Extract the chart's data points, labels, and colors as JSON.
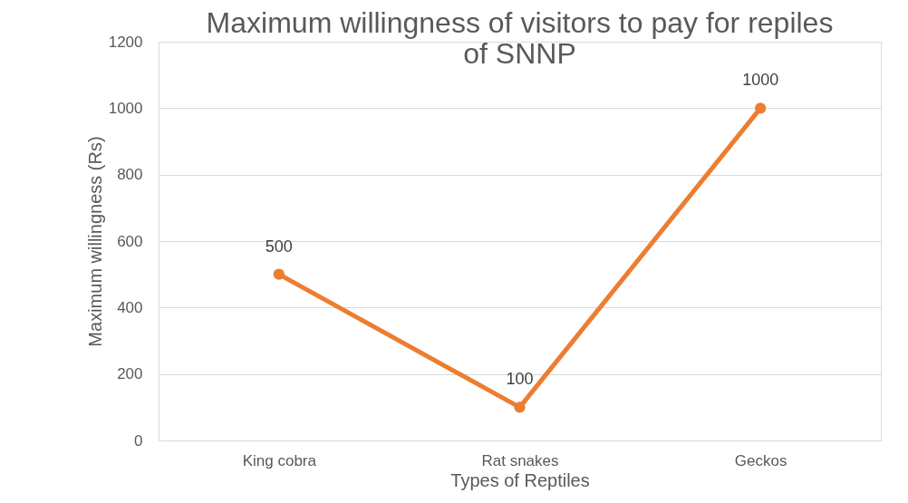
{
  "chart_data": {
    "type": "line",
    "title": "Maximum willingness of visitors to pay for repiles of SNNP",
    "xlabel": "Types of Reptiles",
    "ylabel": "Maximum willingness (Rs)",
    "categories": [
      "King cobra",
      "Rat snakes",
      "Geckos"
    ],
    "series": [
      {
        "color": "#ed7d31",
        "values": [
          500,
          100,
          1000
        ]
      }
    ],
    "ylim": [
      0,
      1200
    ],
    "yticks": [
      0,
      200,
      400,
      600,
      800,
      1000,
      1200
    ],
    "grid": "y",
    "marker": "circle",
    "line_style": "solid",
    "data_labels": true
  }
}
